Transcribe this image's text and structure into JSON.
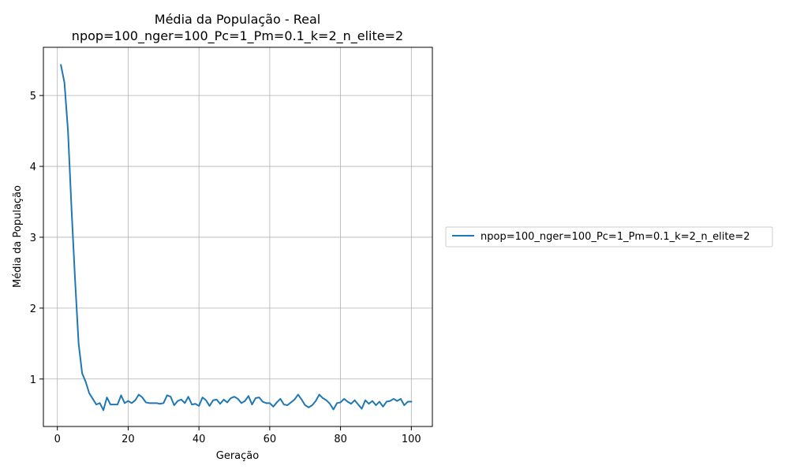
{
  "chart_data": {
    "type": "line",
    "title": "Média da População - Real",
    "subtitle": "npop=100_nger=100_Pc=1_Pm=0.1_k=2_n_elite=2",
    "xlabel": "Geração",
    "ylabel": "Média da População",
    "xlim": [
      -3.95,
      105.95
    ],
    "ylim": [
      0.33,
      5.68
    ],
    "xticks": [
      0,
      20,
      40,
      60,
      80,
      100
    ],
    "yticks": [
      1,
      2,
      3,
      4,
      5
    ],
    "grid": true,
    "legend_position": "outside-right",
    "series": [
      {
        "name": "npop=100_nger=100_Pc=1_Pm=0.1_k=2_n_elite=2",
        "color": "#1f77b4",
        "x": [
          1,
          2,
          3,
          4,
          5,
          6,
          7,
          8,
          9,
          10,
          11,
          12,
          13,
          14,
          15,
          16,
          17,
          18,
          19,
          20,
          21,
          22,
          23,
          24,
          25,
          26,
          27,
          28,
          29,
          30,
          31,
          32,
          33,
          34,
          35,
          36,
          37,
          38,
          39,
          40,
          41,
          42,
          43,
          44,
          45,
          46,
          47,
          48,
          49,
          50,
          51,
          52,
          53,
          54,
          55,
          56,
          57,
          58,
          59,
          60,
          61,
          62,
          63,
          64,
          65,
          66,
          67,
          68,
          69,
          70,
          71,
          72,
          73,
          74,
          75,
          76,
          77,
          78,
          79,
          80,
          81,
          82,
          83,
          84,
          85,
          86,
          87,
          88,
          89,
          90,
          91,
          92,
          93,
          94,
          95,
          96,
          97,
          98,
          99,
          100
        ],
        "values": [
          5.43,
          5.18,
          4.5,
          3.4,
          2.4,
          1.5,
          1.08,
          0.96,
          0.8,
          0.72,
          0.64,
          0.66,
          0.56,
          0.74,
          0.64,
          0.64,
          0.64,
          0.77,
          0.66,
          0.69,
          0.66,
          0.7,
          0.78,
          0.74,
          0.67,
          0.66,
          0.66,
          0.66,
          0.65,
          0.66,
          0.77,
          0.75,
          0.63,
          0.69,
          0.71,
          0.66,
          0.75,
          0.64,
          0.65,
          0.62,
          0.74,
          0.7,
          0.62,
          0.7,
          0.71,
          0.65,
          0.71,
          0.67,
          0.73,
          0.75,
          0.72,
          0.66,
          0.69,
          0.76,
          0.64,
          0.73,
          0.74,
          0.68,
          0.66,
          0.66,
          0.61,
          0.67,
          0.72,
          0.64,
          0.63,
          0.67,
          0.71,
          0.78,
          0.71,
          0.63,
          0.6,
          0.63,
          0.69,
          0.78,
          0.73,
          0.7,
          0.65,
          0.57,
          0.66,
          0.67,
          0.72,
          0.68,
          0.65,
          0.7,
          0.64,
          0.58,
          0.7,
          0.65,
          0.69,
          0.63,
          0.68,
          0.61,
          0.68,
          0.69,
          0.72,
          0.69,
          0.72,
          0.63,
          0.68,
          0.68
        ]
      }
    ]
  }
}
